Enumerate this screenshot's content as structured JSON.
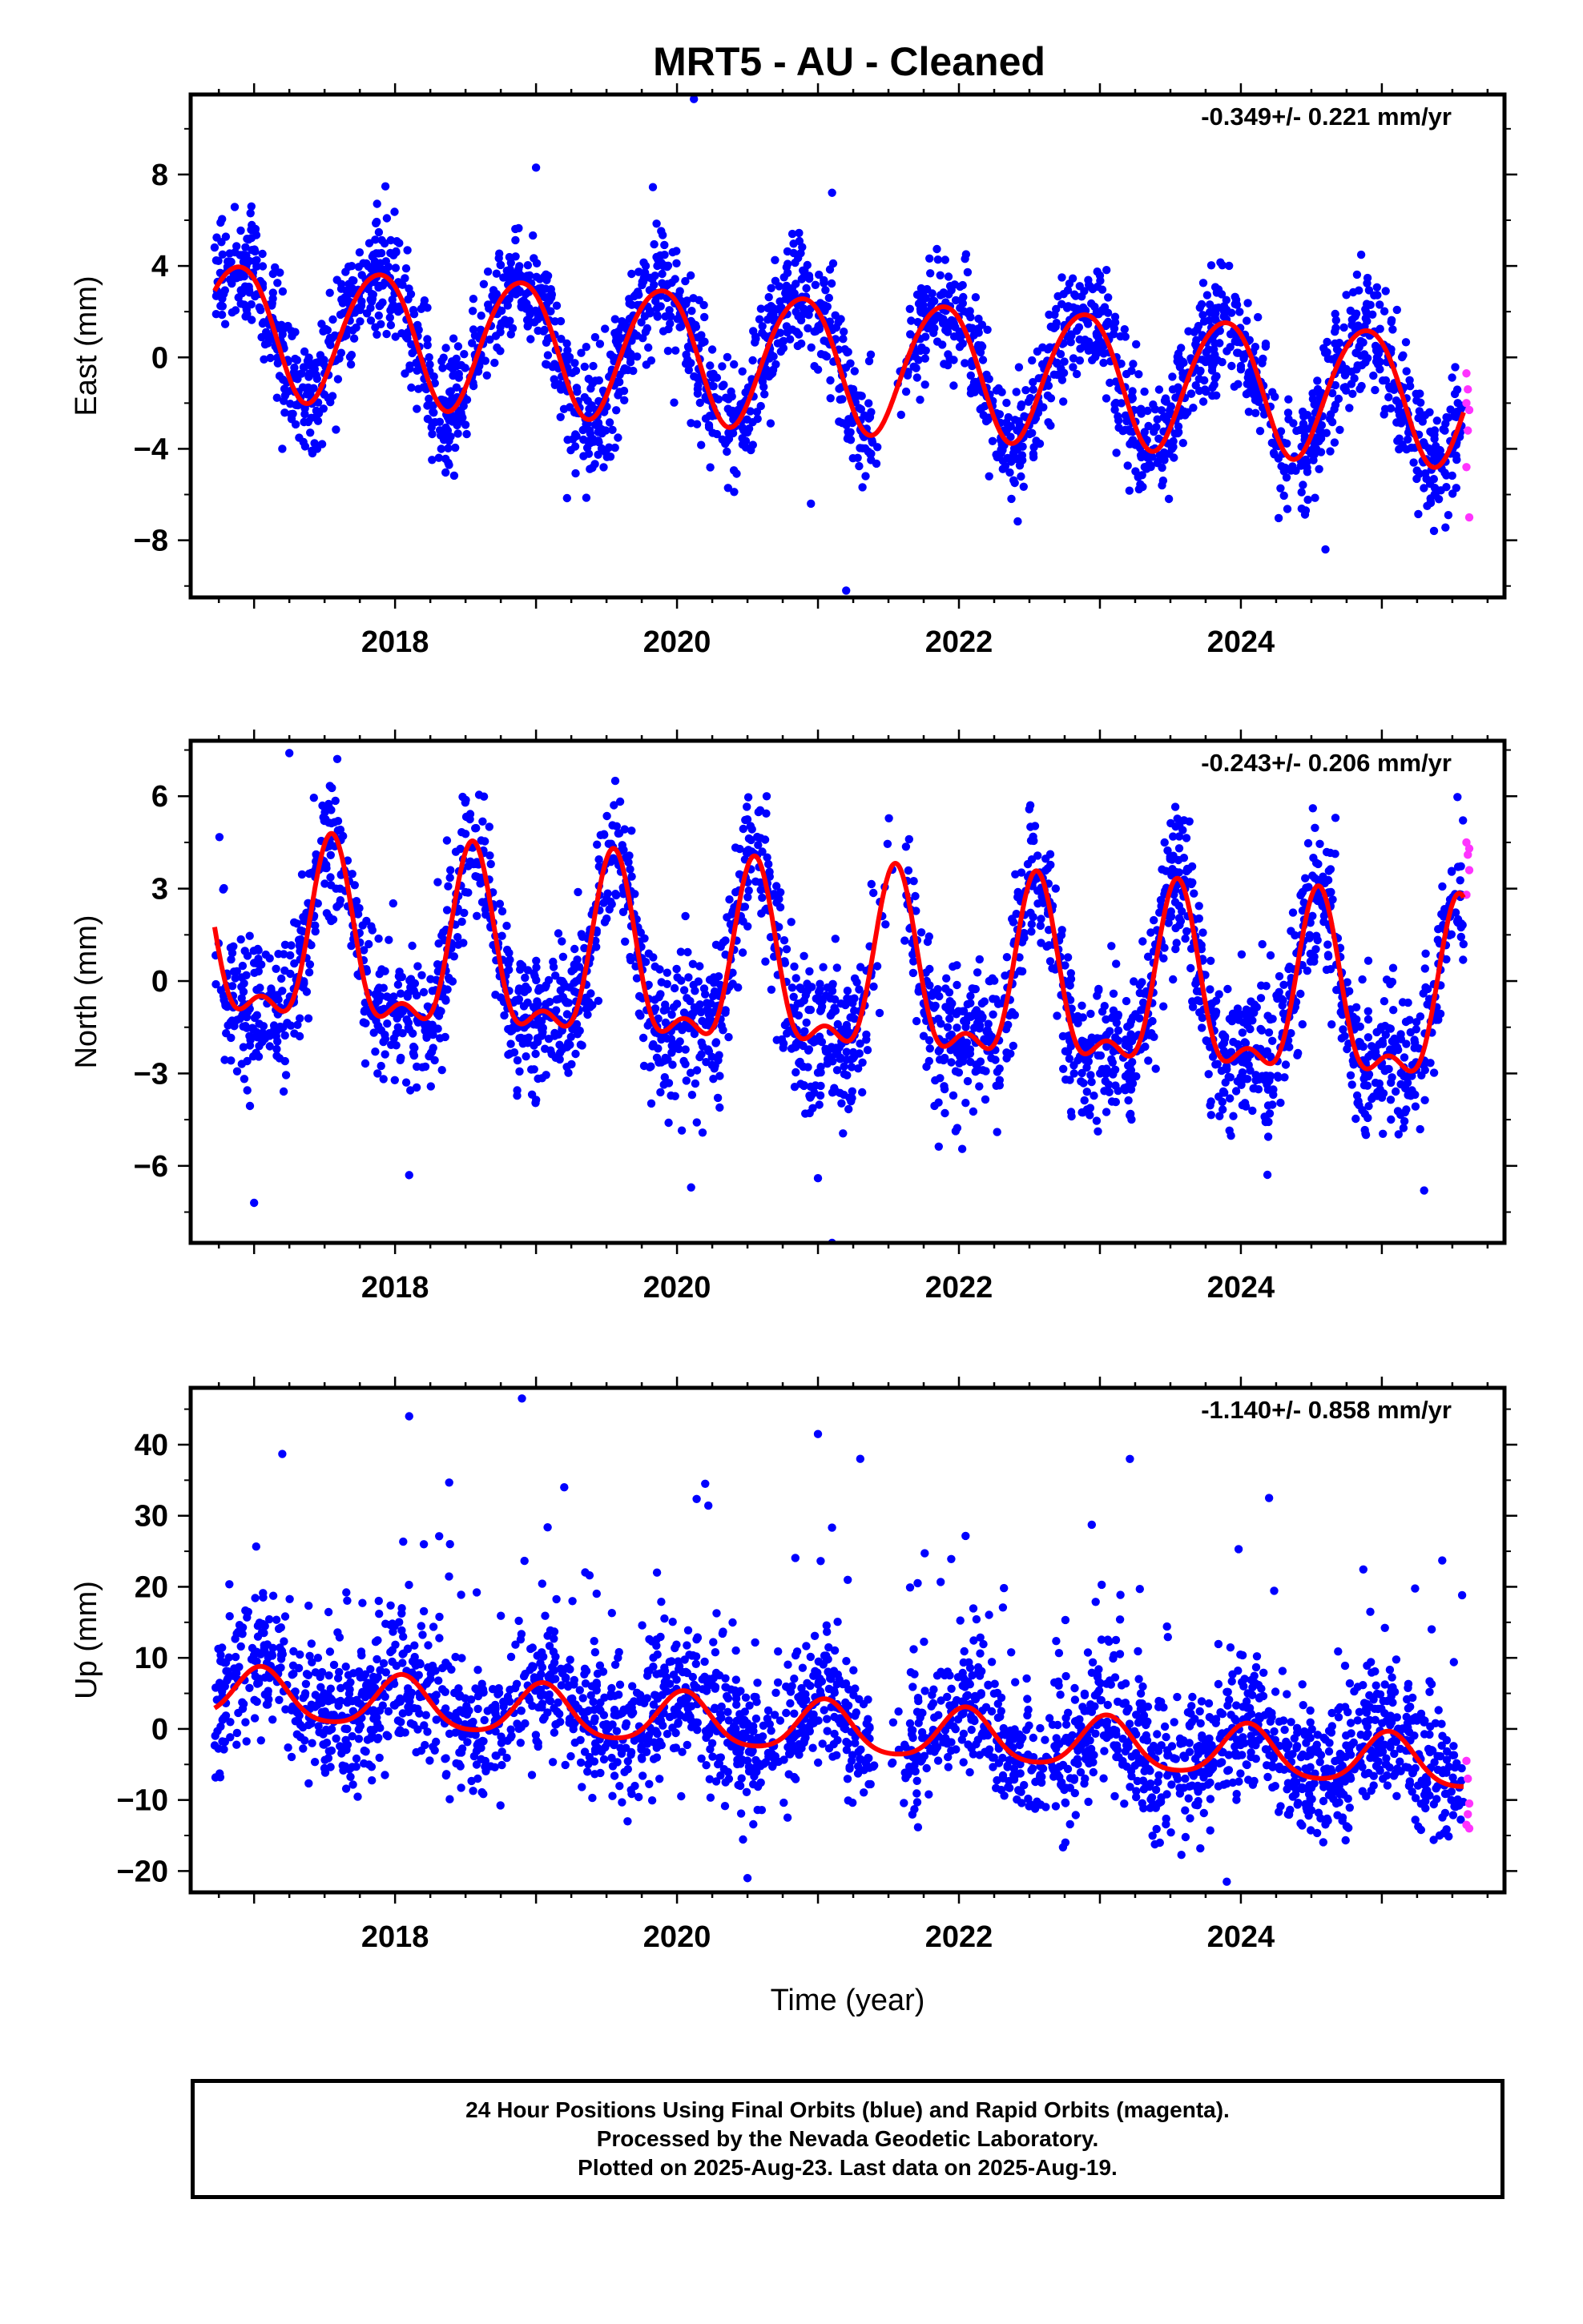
{
  "title": "MRT5  - AU - Cleaned",
  "xlabel": "Time (year)",
  "footer": {
    "line1": "24 Hour Positions Using Final Orbits (blue) and Rapid Orbits (magenta).",
    "line2": "Processed by the Nevada Geodetic Laboratory.",
    "line3": "Plotted on 2025-Aug-23. Last data on 2025-Aug-19."
  },
  "colors": {
    "final": "#0000ff",
    "rapid": "#ff33ff",
    "model": "#ff0000"
  },
  "chart_data": [
    {
      "type": "scatter",
      "component": "east",
      "ylabel": "East (mm)",
      "rate_label": "-0.349+/- 0.221 mm/yr",
      "xlim": [
        2016.55,
        2025.87
      ],
      "ylim": [
        -10.5,
        11.5
      ],
      "xticks": [
        2018,
        2020,
        2022,
        2024
      ],
      "yticks": [
        -8,
        -4,
        0,
        4,
        8
      ],
      "model": {
        "offset": 1.35,
        "trend": -0.349,
        "annual_amp": 2.9,
        "annual_peak": 0.88,
        "semi_amp": 0.25,
        "semi_peak": 0.1
      },
      "noise": 1.3,
      "outliers": [
        [
          2020.12,
          11.3
        ],
        [
          2021.2,
          -10.2
        ],
        [
          2020.95,
          -6.4
        ],
        [
          2019.0,
          8.3
        ],
        [
          2017.2,
          -4.0
        ],
        [
          2024.6,
          -8.4
        ],
        [
          2021.1,
          7.2
        ]
      ],
      "rapid_points": [
        [
          2025.6,
          -0.7
        ],
        [
          2025.61,
          -1.4
        ],
        [
          2025.62,
          -2.3
        ],
        [
          2025.6,
          -4.8
        ],
        [
          2025.62,
          -7.0
        ],
        [
          2025.61,
          -3.2
        ],
        [
          2025.6,
          -2.0
        ]
      ]
    },
    {
      "type": "scatter",
      "component": "north",
      "ylabel": "North (mm)",
      "rate_label": "-0.243+/- 0.206 mm/yr",
      "xlim": [
        2016.55,
        2025.87
      ],
      "ylim": [
        -8.5,
        7.8
      ],
      "xticks": [
        2018,
        2020,
        2022,
        2024
      ],
      "yticks": [
        -6,
        -3,
        0,
        3,
        6
      ],
      "model": {
        "offset": 1.1,
        "trend": -0.243,
        "annual_amp": 2.7,
        "annual_peak": 0.55,
        "semi_amp": 1.2,
        "semi_peak": 0.55
      },
      "noise": 1.2,
      "outliers": [
        [
          2017.25,
          7.4
        ],
        [
          2021.1,
          -8.5
        ],
        [
          2017.0,
          -7.2
        ],
        [
          2020.1,
          -6.7
        ],
        [
          2025.3,
          -6.8
        ],
        [
          2018.1,
          -6.3
        ],
        [
          2021.0,
          -6.4
        ]
      ],
      "rapid_points": [
        [
          2025.6,
          4.5
        ],
        [
          2025.61,
          4.1
        ],
        [
          2025.62,
          3.6
        ],
        [
          2025.6,
          2.8
        ],
        [
          2025.62,
          4.3
        ]
      ]
    },
    {
      "type": "scatter",
      "component": "up",
      "ylabel": "Up (mm)",
      "rate_label": "-1.140+/- 0.858 mm/yr",
      "xlim": [
        2016.55,
        2025.87
      ],
      "ylim": [
        -23,
        48
      ],
      "xticks": [
        2018,
        2020,
        2022,
        2024
      ],
      "yticks": [
        -20,
        -10,
        0,
        10,
        20,
        30,
        40
      ],
      "model": {
        "offset": 5.0,
        "trend": -1.14,
        "annual_amp": 3.6,
        "annual_peak": 0.05,
        "semi_amp": 0.6,
        "semi_peak": 0.05
      },
      "noise": 4.5,
      "outliers": [
        [
          2018.9,
          46.5
        ],
        [
          2018.1,
          44.0
        ],
        [
          2021.0,
          41.5
        ],
        [
          2017.2,
          38.7
        ],
        [
          2021.3,
          38.0
        ],
        [
          2020.5,
          -21.0
        ],
        [
          2023.9,
          -21.5
        ],
        [
          2020.2,
          34.5
        ],
        [
          2024.2,
          32.5
        ],
        [
          2019.2,
          34.0
        ]
      ],
      "rapid_points": [
        [
          2025.6,
          -4.5
        ],
        [
          2025.61,
          -7.0
        ],
        [
          2025.62,
          -10.5
        ],
        [
          2025.6,
          -13.5
        ],
        [
          2025.62,
          -14.0
        ],
        [
          2025.61,
          -12.0
        ]
      ]
    }
  ]
}
